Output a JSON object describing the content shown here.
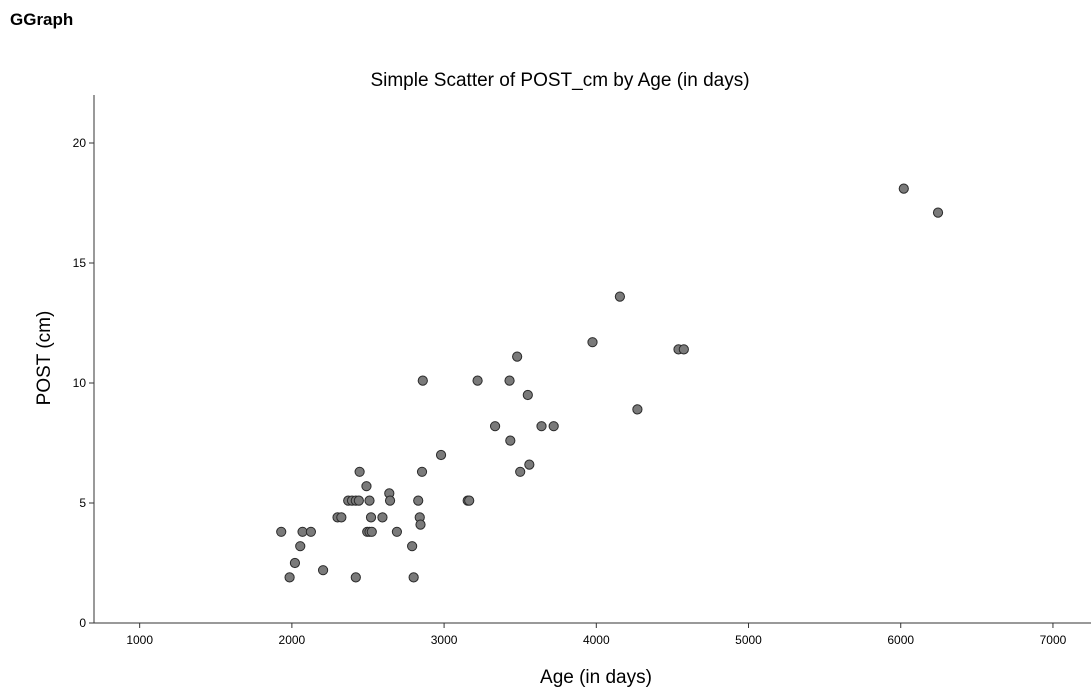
{
  "page": {
    "heading": "GGraph"
  },
  "chart_data": {
    "type": "scatter",
    "title": "Simple Scatter of POST_cm by Age (in days)",
    "xlabel": "Age (in days)",
    "ylabel": "POST (cm)",
    "xlim": [
      700,
      7250
    ],
    "ylim": [
      0,
      22
    ],
    "xticks": [
      1000,
      2000,
      3000,
      4000,
      5000,
      6000,
      7000
    ],
    "yticks": [
      0,
      5,
      10,
      15,
      20
    ],
    "grid": false,
    "marker_color": "#7a7a7a",
    "marker_edge_color": "#2a2a2a",
    "series": [
      {
        "x": [
          1930,
          1985,
          2020,
          2055,
          2070,
          2125,
          2205,
          2300,
          2325,
          2370,
          2395,
          2420,
          2420,
          2445,
          2440,
          2490,
          2495,
          2510,
          2510,
          2520,
          2525,
          2595,
          2640,
          2645,
          2690,
          2790,
          2800,
          2830,
          2840,
          2845,
          2855,
          2860,
          2980,
          3155,
          3165,
          3220,
          3335,
          3430,
          3435,
          3480,
          3500,
          3550,
          3560,
          3640,
          3720,
          3975,
          4155,
          4270,
          4540,
          4575,
          6020,
          6245
        ],
        "y": [
          3.8,
          1.9,
          2.5,
          3.2,
          3.8,
          3.8,
          2.2,
          4.4,
          4.4,
          5.1,
          5.1,
          5.1,
          1.9,
          6.3,
          5.1,
          5.7,
          3.8,
          5.1,
          3.8,
          4.4,
          3.8,
          4.4,
          5.4,
          5.1,
          3.8,
          3.2,
          1.9,
          5.1,
          4.4,
          4.1,
          6.3,
          10.1,
          7.0,
          5.1,
          5.1,
          10.1,
          8.2,
          10.1,
          7.6,
          11.1,
          6.3,
          9.5,
          6.6,
          8.2,
          8.2,
          11.7,
          13.6,
          8.9,
          11.4,
          11.4,
          18.1,
          17.1
        ]
      }
    ]
  }
}
